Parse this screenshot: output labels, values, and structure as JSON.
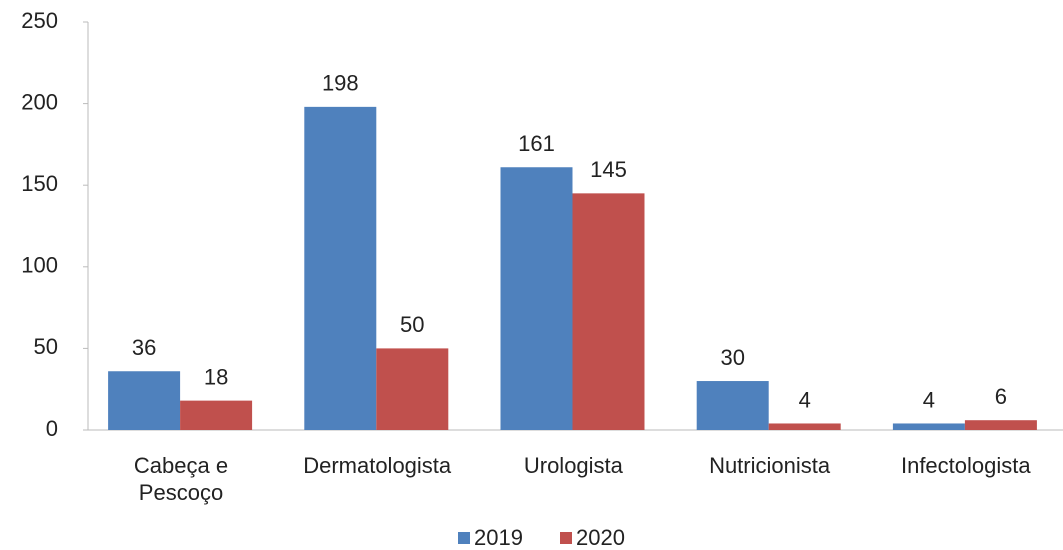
{
  "chart_data": {
    "type": "bar",
    "categories": [
      "Cabeça e\nPescoço",
      "Dermatologista",
      "Urologista",
      "Nutricionista",
      "Infectologista"
    ],
    "series": [
      {
        "name": "2019",
        "color": "#4f81bd",
        "values": [
          36,
          198,
          161,
          30,
          4
        ]
      },
      {
        "name": "2020",
        "color": "#c0504d",
        "values": [
          18,
          50,
          145,
          4,
          6
        ]
      }
    ],
    "ylim": [
      0,
      250
    ],
    "yticks": [
      0,
      50,
      100,
      150,
      200,
      250
    ],
    "grid": false,
    "legend": "bottom"
  }
}
